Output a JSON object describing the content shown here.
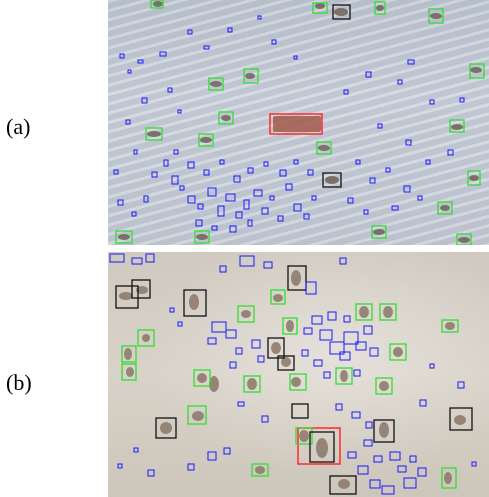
{
  "panels": [
    {
      "label": "(a)"
    },
    {
      "label": "(b)"
    }
  ],
  "legend_colors": {
    "target_box": "#ff2a2a",
    "green_box": "#33dd33",
    "black_box": "#111111",
    "blue_box": "#1a1aff"
  }
}
